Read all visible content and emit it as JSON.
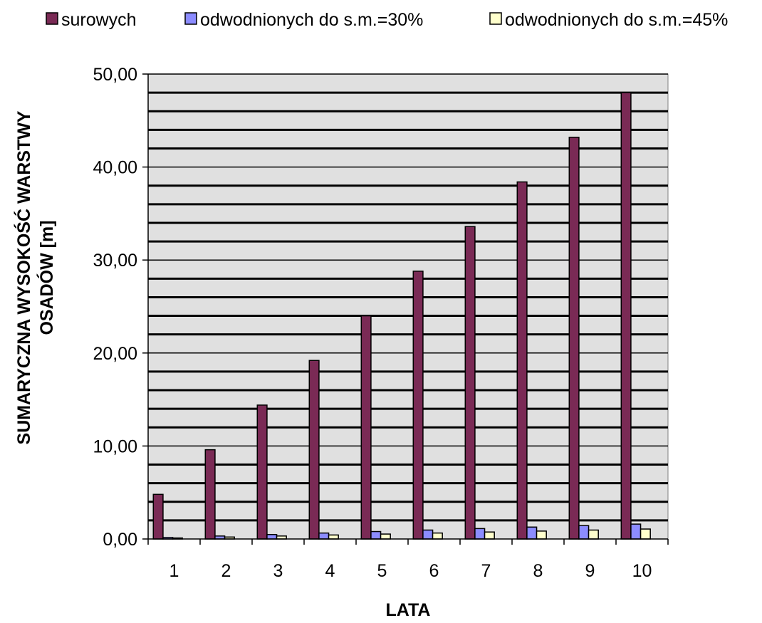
{
  "chart_data": {
    "type": "bar",
    "categories": [
      "1",
      "2",
      "3",
      "4",
      "5",
      "6",
      "7",
      "8",
      "9",
      "10"
    ],
    "series": [
      {
        "name": "surowych",
        "color": "#7a2a55",
        "values": [
          4.8,
          9.6,
          14.4,
          19.2,
          24.0,
          28.8,
          33.6,
          38.4,
          43.2,
          48.0
        ]
      },
      {
        "name": "odwodnionych do s.m.=30%",
        "color": "#8c8cff",
        "values": [
          0.16,
          0.32,
          0.48,
          0.64,
          0.8,
          0.96,
          1.12,
          1.28,
          1.44,
          1.6
        ]
      },
      {
        "name": "odwodnionych do s.m.=45%",
        "color": "#ffffcc",
        "values": [
          0.11,
          0.21,
          0.32,
          0.43,
          0.53,
          0.64,
          0.75,
          0.85,
          0.96,
          1.07
        ]
      }
    ],
    "xlabel": "LATA",
    "ylabel_lines": [
      "SUMARYCZNA WYSOKOŚĆ WARSTWY",
      "OSADÓW [m]"
    ],
    "ylim": [
      0,
      50
    ],
    "yticks": [
      "0,00",
      "10,00",
      "20,00",
      "30,00",
      "40,00",
      "50,00"
    ],
    "minor_gridline_step": 2,
    "grid": true,
    "legend_position": "top",
    "plot_background": "#e0e0e0"
  }
}
